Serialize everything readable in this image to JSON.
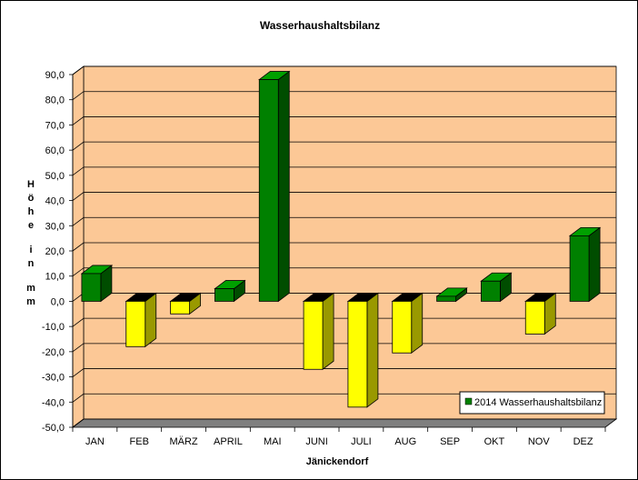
{
  "chart_data": {
    "type": "bar",
    "title": "Wasserhaushaltsbilanz",
    "xlabel": "Jänickendorf",
    "ylabel": "Höhe in mm",
    "ylim": [
      -50,
      90
    ],
    "yticks": [
      "-50,0",
      "-40,0",
      "-30,0",
      "-20,0",
      "-10,0",
      "0,0",
      "10,0",
      "20,0",
      "30,0",
      "40,0",
      "50,0",
      "60,0",
      "70,0",
      "80,0",
      "90,0"
    ],
    "categories": [
      "JAN",
      "FEB",
      "MÄRZ",
      "APRIL",
      "MAI",
      "JUNI",
      "JULI",
      "AUG",
      "SEP",
      "OKT",
      "NOV",
      "DEZ"
    ],
    "series": [
      {
        "name": "2014 Wasserhaushaltsbilanz",
        "values": [
          11,
          -18,
          -5,
          5,
          88,
          -27,
          -42,
          -20.5,
          2,
          8,
          -13,
          26
        ]
      }
    ],
    "legend_position": "bottom-right",
    "grid": true,
    "colors": {
      "plot_wall": "#fcc896",
      "floor": "#7f7f7f",
      "positive_front": "#008000",
      "positive_top": "#00a000",
      "positive_side": "#004d00",
      "negative_front": "#ffff00",
      "negative_top": "#000000",
      "negative_side": "#999900"
    }
  }
}
